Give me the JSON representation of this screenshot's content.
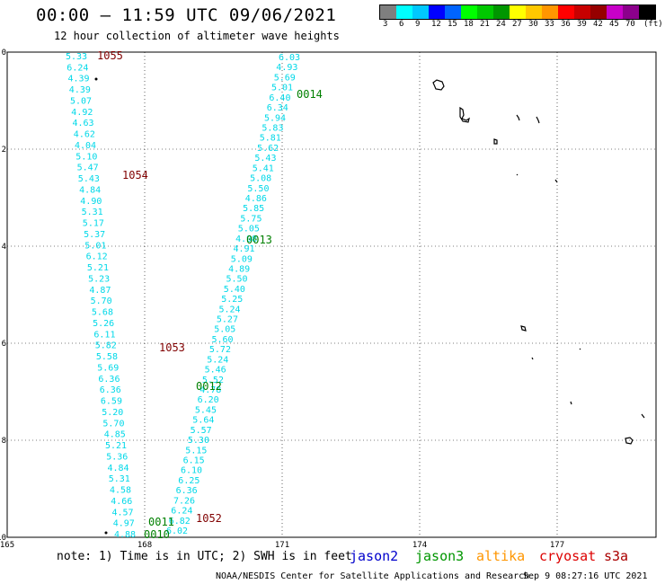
{
  "header": {
    "title": "00:00 – 11:59 UTC 09/06/2021",
    "subtitle": "12 hour collection of altimeter wave heights"
  },
  "colorbar": {
    "colors": [
      "#7f7f7f",
      "#00ffff",
      "#00c8ff",
      "#0000ff",
      "#0064ff",
      "#00ff00",
      "#00c800",
      "#009600",
      "#ffff00",
      "#ffc800",
      "#ff9600",
      "#ff0000",
      "#c80000",
      "#960000",
      "#c800c8",
      "#8c008c",
      "#000000"
    ],
    "labels": [
      "3",
      "6",
      "9",
      "12",
      "15",
      "18",
      "21",
      "24",
      "27",
      "30",
      "33",
      "36",
      "39",
      "42",
      "45",
      "70",
      "(ft)"
    ]
  },
  "map": {
    "lat_labels": [
      "0",
      "-2",
      "-4",
      "-6",
      "-8",
      "-10"
    ],
    "lon_labels": [
      "165",
      "168",
      "171",
      "174",
      "177"
    ],
    "pass_labels": [
      {
        "text": "1055",
        "color": "#800000"
      },
      {
        "text": "1054",
        "color": "#800000"
      },
      {
        "text": "1053",
        "color": "#800000"
      },
      {
        "text": "1052",
        "color": "#800000"
      },
      {
        "text": "0014",
        "color": "#008000"
      },
      {
        "text": "0013",
        "color": "#008000"
      },
      {
        "text": "0012",
        "color": "#008000"
      },
      {
        "text": "0011",
        "color": "#008000"
      },
      {
        "text": "0010",
        "color": "#008000"
      }
    ],
    "track_a_values": [
      "5.33",
      "6.24",
      "4.39",
      "4.39",
      "5.07",
      "4.92",
      "4.63",
      "4.62",
      "4.04",
      "5.10",
      "5.47",
      "5.43",
      "4.84",
      "4.90",
      "5.31",
      "5.17",
      "5.37",
      "5.01",
      "6.12",
      "5.21",
      "5.23",
      "4.87",
      "5.70",
      "5.68",
      "5.26",
      "6.11",
      "5.82",
      "5.58",
      "5.69",
      "6.36",
      "6.36",
      "6.59",
      "5.20",
      "5.70",
      "4.85",
      "5.21",
      "5.36",
      "4.84",
      "5.31",
      "4.58",
      "4.66",
      "4.57",
      "4.97",
      "4.88"
    ],
    "track_b_values": [
      "6.03",
      "4.93",
      "5.69",
      "5.01",
      "6.40",
      "6.34",
      "5.94",
      "5.83",
      "5.81",
      "5.62",
      "5.43",
      "5.41",
      "5.08",
      "5.50",
      "4.86",
      "5.85",
      "5.75",
      "5.05",
      "4.98",
      "4.91",
      "5.09",
      "4.89",
      "5.50",
      "5.40",
      "5.25",
      "5.24",
      "5.27",
      "5.05",
      "5.60",
      "5.72",
      "5.24",
      "5.46",
      "5.52",
      "4.78",
      "6.20",
      "5.45",
      "5.64",
      "5.57",
      "5.30",
      "5.15",
      "6.15",
      "6.10",
      "6.25",
      "6.36",
      "7.26",
      "6.24",
      "6.82",
      "6.02"
    ]
  },
  "legend": {
    "note": "note:  1) Time is in UTC;  2) SWH is in feet",
    "satellites": [
      {
        "name": "jason2",
        "color": "#0000cc"
      },
      {
        "name": "jason3",
        "color": "#009600"
      },
      {
        "name": "altika",
        "color": "#ff9600"
      },
      {
        "name": "cryosat",
        "color": "#dd0000"
      },
      {
        "name": "s3a",
        "color": "#aa0000"
      }
    ]
  },
  "footer": {
    "credit": "NOAA/NESDIS Center for Satellite Applications and Research",
    "timestamp": "Sep  9 08:27:16 UTC 2021"
  }
}
